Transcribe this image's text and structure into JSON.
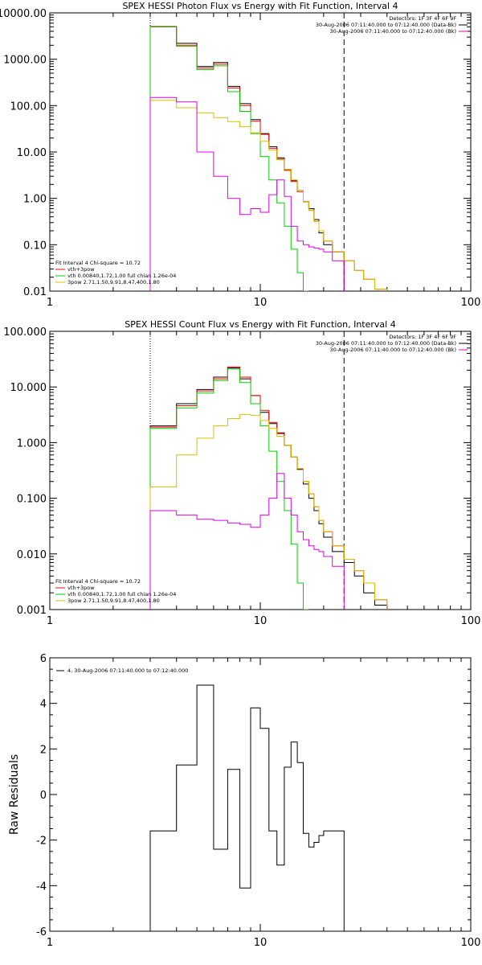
{
  "chart_data": [
    {
      "type": "line",
      "title": "SPEX HESSI Photon Flux vs Energy with Fit Function, Interval 4",
      "xscale": "log",
      "yscale": "log",
      "xlim": [
        1,
        100
      ],
      "ylim": [
        0.01,
        10000
      ],
      "ylabel": "",
      "xticks": [
        1,
        10,
        100
      ],
      "xtick_labels": [
        "1",
        "10",
        "100"
      ],
      "yticks": [
        0.01,
        0.1,
        1,
        10,
        100,
        1000,
        10000
      ],
      "ytick_labels": [
        "0.01",
        "0.10",
        "1.00",
        "10.00",
        "100.00",
        "1000.00",
        "10000.00"
      ],
      "vlines": [
        {
          "x": 3,
          "style": "dotted"
        },
        {
          "x": 25,
          "style": "dashed"
        }
      ],
      "header_lines": [
        "Detectors: 1F 3F 4F 6F 9F",
        "30-Aug-2006 07:11:40.000 to 07:12:40.000 (Data-Bk)",
        "30-Aug-2006 07:11:40.000 to 07:12:40.000 (Bk)"
      ],
      "legend_lines": [
        "Fit Interval 4   Chi-square = 10.72",
        "vth+3pow",
        "vth 0.00840,1.72,1.00  full chian 1.26e-04",
        "3pow 2.71,1.50,9.91,8.47,400,1.80"
      ],
      "edges": [
        3,
        4,
        5,
        6,
        7,
        8,
        9,
        10,
        11,
        12,
        13,
        14,
        15,
        16,
        17,
        18,
        19,
        20,
        22,
        25,
        28,
        31,
        35,
        40
      ],
      "series": [
        {
          "label": "Data-Bk",
          "color": "#000000",
          "values": [
            5000,
            2200,
            700,
            850,
            260,
            110,
            50,
            25,
            13,
            7.5,
            4.2,
            2.4,
            1.5,
            0.85,
            0.6,
            0.35,
            0.18,
            0.1,
            0.07,
            null,
            null,
            null,
            null
          ]
        },
        {
          "label": "vth+3pow",
          "color": "#ff0000",
          "values": [
            5100,
            2000,
            650,
            780,
            240,
            100,
            46,
            24,
            12,
            7,
            4,
            2.3,
            1.4,
            0.85,
            0.55,
            0.32,
            0.2,
            0.12,
            0.07,
            0.045,
            0.028,
            0.018,
            0.011
          ]
        },
        {
          "label": "vth",
          "color": "#00d000",
          "values": [
            5000,
            1900,
            600,
            720,
            200,
            75,
            25,
            8,
            2.5,
            0.8,
            0.25,
            0.08,
            0.025,
            0.01,
            null,
            null,
            null,
            null,
            null,
            null,
            null,
            null,
            null
          ]
        },
        {
          "label": "3pow",
          "color": "#d8c000",
          "values": [
            130,
            90,
            70,
            55,
            45,
            35,
            26,
            17,
            11,
            6.8,
            4.2,
            2.5,
            1.5,
            0.85,
            0.55,
            0.32,
            0.2,
            0.12,
            0.07,
            0.045,
            0.028,
            0.018,
            0.011
          ]
        },
        {
          "label": "Bk",
          "color": "#e000e0",
          "values": [
            150,
            120,
            10,
            3,
            1,
            0.45,
            0.6,
            0.5,
            1.2,
            2.5,
            1.1,
            0.25,
            0.12,
            0.1,
            0.09,
            0.085,
            0.08,
            0.07,
            0.045,
            null,
            null,
            null,
            null
          ]
        }
      ]
    },
    {
      "type": "line",
      "title": "SPEX HESSI Count Flux vs Energy with Fit Function, Interval 4",
      "xscale": "log",
      "yscale": "log",
      "xlim": [
        1,
        100
      ],
      "ylim": [
        0.001,
        100
      ],
      "ylabel": "",
      "xticks": [
        1,
        10,
        100
      ],
      "xtick_labels": [
        "1",
        "10",
        "100"
      ],
      "yticks": [
        0.001,
        0.01,
        0.1,
        1,
        10,
        100
      ],
      "ytick_labels": [
        "0.001",
        "0.010",
        "0.100",
        "1.000",
        "10.000",
        "100.000"
      ],
      "vlines": [
        {
          "x": 3,
          "style": "dotted"
        },
        {
          "x": 25,
          "style": "dashed"
        }
      ],
      "header_lines": [
        "Detectors: 1F 3F 4F 6F 9F",
        "30-Aug-2006 07:11:40.000 to 07:12:40.000 (Data-Bk)",
        "30-Aug-2006 07:11:40.000 to 07:12:40.000 (Bk)"
      ],
      "legend_lines": [
        "Fit Interval 4   Chi-square = 10.72",
        "vth+3pow",
        "vth 0.00840,1.72,1.00  full chian 1.26e-04",
        "3pow 2.71,1.50,9.91,8.47,400,1.80"
      ],
      "edges": [
        3,
        4,
        5,
        6,
        7,
        8,
        9,
        10,
        11,
        12,
        13,
        14,
        15,
        16,
        17,
        18,
        19,
        20,
        22,
        25,
        28,
        31,
        35,
        40
      ],
      "series": [
        {
          "label": "Data-Bk",
          "color": "#000000",
          "values": [
            2,
            5,
            9,
            15,
            22,
            14,
            7,
            3.5,
            2.2,
            1.5,
            0.9,
            0.55,
            0.33,
            0.18,
            0.1,
            0.06,
            0.035,
            0.02,
            0.011,
            0.007,
            0.004,
            0.002,
            0.0012
          ]
        },
        {
          "label": "vth+3pow",
          "color": "#ff0000",
          "values": [
            1.9,
            4.6,
            8.5,
            14,
            23,
            15,
            7,
            3.8,
            2.3,
            1.45,
            0.9,
            0.55,
            0.34,
            0.2,
            0.12,
            0.07,
            0.04,
            0.025,
            0.014,
            0.008,
            0.005,
            0.003,
            0.0015
          ]
        },
        {
          "label": "vth",
          "color": "#00d000",
          "values": [
            1.8,
            4.2,
            7.8,
            13,
            21,
            12,
            5,
            2,
            0.7,
            0.2,
            0.06,
            0.015,
            0.003,
            0.001,
            null,
            null,
            null,
            null,
            null,
            null,
            null,
            null,
            null
          ]
        },
        {
          "label": "3pow",
          "color": "#d8c000",
          "values": [
            0.16,
            0.6,
            1.2,
            2,
            2.7,
            3.2,
            3.1,
            2.5,
            1.8,
            1.3,
            0.9,
            0.55,
            0.34,
            0.2,
            0.12,
            0.07,
            0.04,
            0.025,
            0.014,
            0.008,
            0.005,
            0.003,
            0.0015
          ]
        },
        {
          "label": "Bk",
          "color": "#e000e0",
          "values": [
            0.06,
            0.05,
            0.042,
            0.04,
            0.036,
            0.034,
            0.03,
            0.05,
            0.1,
            0.28,
            0.1,
            0.05,
            0.025,
            0.018,
            0.014,
            0.012,
            0.011,
            0.009,
            0.006,
            null,
            null,
            null,
            null
          ]
        }
      ]
    },
    {
      "type": "line",
      "title": "",
      "xscale": "log",
      "yscale": "linear",
      "xlim": [
        1,
        100
      ],
      "ylim": [
        -6,
        6
      ],
      "ylabel": "Raw Residuals",
      "xticks": [
        1,
        10,
        100
      ],
      "xtick_labels": [
        "1",
        "10",
        "100"
      ],
      "yticks": [
        -6,
        -4,
        -2,
        0,
        2,
        4,
        6
      ],
      "ytick_labels": [
        "-6",
        "-4",
        "-2",
        "0",
        "2",
        "4",
        "6"
      ],
      "header_lines": [],
      "legend_lines": [
        "4, 30-Aug-2006 07:11:40.000 to 07:12:40.000"
      ],
      "edges": [
        3,
        4,
        5,
        6,
        7,
        8,
        9,
        10,
        11,
        12,
        13,
        14,
        15,
        16,
        17,
        18,
        19,
        20,
        22,
        25
      ],
      "series": [
        {
          "label": "residuals",
          "color": "#000000",
          "values": [
            -1.6,
            1.3,
            4.8,
            -2.4,
            1.1,
            -4.1,
            3.8,
            2.9,
            -1.6,
            -3.1,
            1.2,
            2.3,
            1.4,
            -1.7,
            -2.3,
            -2.1,
            -1.8,
            -1.6,
            -1.6
          ]
        }
      ]
    }
  ]
}
